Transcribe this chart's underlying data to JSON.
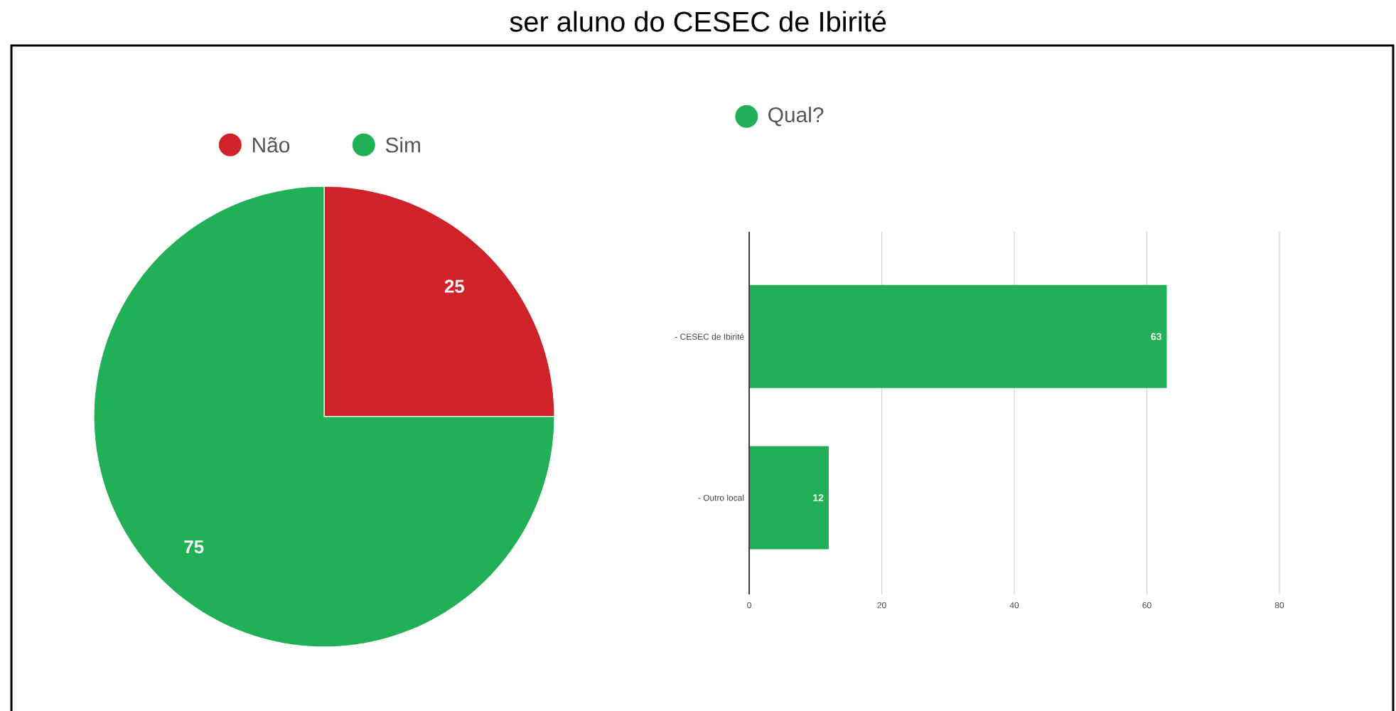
{
  "chart_data": [
    {
      "type": "pie",
      "title": "ser aluno do CESEC de Ibirité",
      "categories": [
        "Não",
        "Sim"
      ],
      "values": [
        25,
        75
      ],
      "colors": [
        "#cf2229",
        "#21b056"
      ],
      "data_labels": true,
      "legend": "top"
    },
    {
      "type": "bar",
      "orientation": "horizontal",
      "categories": [
        "- CESEC de Ibirité",
        "- Outro local"
      ],
      "series": [
        {
          "name": "Qual?",
          "color": "#21b056",
          "values": [
            63,
            12
          ]
        }
      ],
      "xlim": [
        0,
        80
      ],
      "xticks": [
        0,
        20,
        40,
        60,
        80
      ],
      "grid": "x",
      "data_labels": true,
      "legend": "top left"
    }
  ]
}
